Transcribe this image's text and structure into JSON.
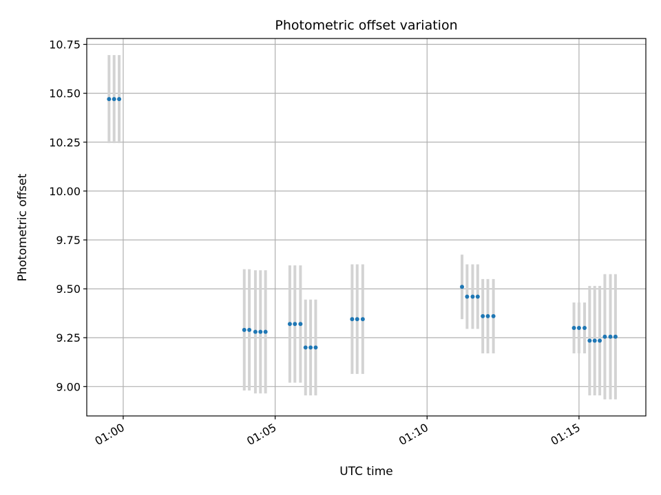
{
  "chart_data": {
    "type": "scatter",
    "title": "Photometric offset variation",
    "xlabel": "UTC time",
    "ylabel": "Photometric offset",
    "xlim": [
      "00:58:48",
      "01:17:12"
    ],
    "ylim": [
      8.85,
      10.78
    ],
    "x_ticks": [
      "01:00",
      "01:05",
      "01:10",
      "01:15"
    ],
    "y_ticks": [
      "9.00",
      "9.25",
      "9.50",
      "9.75",
      "10.00",
      "10.25",
      "10.50",
      "10.75"
    ],
    "grid": true,
    "colors": {
      "points": "#1f77b4",
      "errorbars": "#d3d3d3",
      "grid": "#b0b0b0"
    },
    "points": [
      {
        "x": "00:59:32",
        "y": 10.47,
        "yerr": 0.225
      },
      {
        "x": "00:59:42",
        "y": 10.47,
        "yerr": 0.225
      },
      {
        "x": "00:59:52",
        "y": 10.47,
        "yerr": 0.225
      },
      {
        "x": "01:03:59",
        "y": 9.29,
        "yerr": 0.31
      },
      {
        "x": "01:04:09",
        "y": 9.29,
        "yerr": 0.31
      },
      {
        "x": "01:04:21",
        "y": 9.28,
        "yerr": 0.315
      },
      {
        "x": "01:04:31",
        "y": 9.28,
        "yerr": 0.315
      },
      {
        "x": "01:04:41",
        "y": 9.28,
        "yerr": 0.315
      },
      {
        "x": "01:05:29",
        "y": 9.32,
        "yerr": 0.3
      },
      {
        "x": "01:05:39",
        "y": 9.32,
        "yerr": 0.3
      },
      {
        "x": "01:05:50",
        "y": 9.32,
        "yerr": 0.3
      },
      {
        "x": "01:06:00",
        "y": 9.2,
        "yerr": 0.245
      },
      {
        "x": "01:06:10",
        "y": 9.2,
        "yerr": 0.245
      },
      {
        "x": "01:06:20",
        "y": 9.2,
        "yerr": 0.245
      },
      {
        "x": "01:07:32",
        "y": 9.345,
        "yerr": 0.28
      },
      {
        "x": "01:07:42",
        "y": 9.345,
        "yerr": 0.28
      },
      {
        "x": "01:07:53",
        "y": 9.345,
        "yerr": 0.28
      },
      {
        "x": "01:11:09",
        "y": 9.51,
        "yerr": 0.165
      },
      {
        "x": "01:11:19",
        "y": 9.46,
        "yerr": 0.165
      },
      {
        "x": "01:11:30",
        "y": 9.46,
        "yerr": 0.165
      },
      {
        "x": "01:11:40",
        "y": 9.46,
        "yerr": 0.165
      },
      {
        "x": "01:11:50",
        "y": 9.36,
        "yerr": 0.19
      },
      {
        "x": "01:12:00",
        "y": 9.36,
        "yerr": 0.19
      },
      {
        "x": "01:12:11",
        "y": 9.36,
        "yerr": 0.19
      },
      {
        "x": "01:14:50",
        "y": 9.3,
        "yerr": 0.13
      },
      {
        "x": "01:15:00",
        "y": 9.3,
        "yerr": 0.13
      },
      {
        "x": "01:15:11",
        "y": 9.3,
        "yerr": 0.13
      },
      {
        "x": "01:15:21",
        "y": 9.235,
        "yerr": 0.28
      },
      {
        "x": "01:15:31",
        "y": 9.235,
        "yerr": 0.28
      },
      {
        "x": "01:15:41",
        "y": 9.235,
        "yerr": 0.28
      },
      {
        "x": "01:15:51",
        "y": 9.255,
        "yerr": 0.32
      },
      {
        "x": "01:16:02",
        "y": 9.255,
        "yerr": 0.32
      },
      {
        "x": "01:16:12",
        "y": 9.255,
        "yerr": 0.32
      }
    ]
  }
}
